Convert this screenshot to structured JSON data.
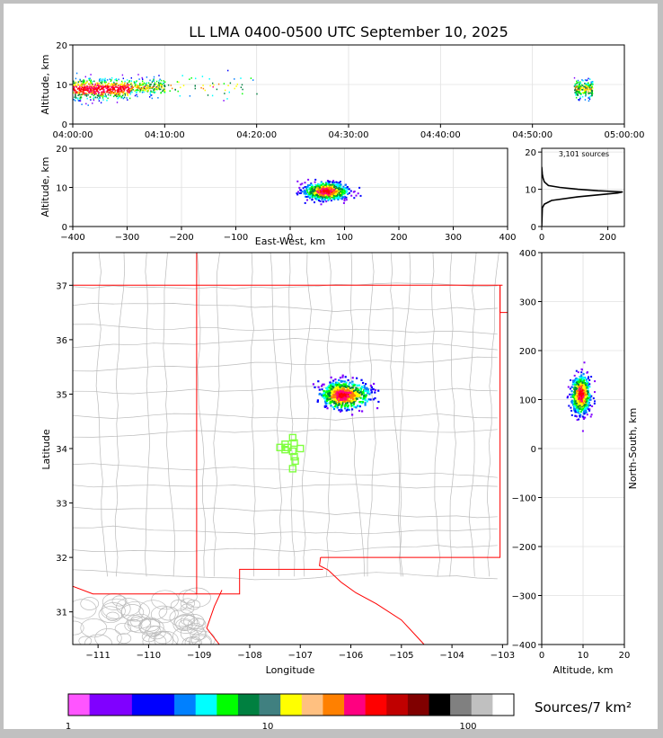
{
  "chart_data": {
    "type": "lightning-mapping-array-composite",
    "title": "LL LMA 0400-0500 UTC September 10, 2025",
    "panels": {
      "time_altitude": {
        "type": "scatter",
        "ylabel": "Altitude, km",
        "ylim": [
          0,
          20
        ],
        "yticks": [
          "0",
          "10",
          "20"
        ],
        "xticks": [
          "04:00:00",
          "04:10:00",
          "04:20:00",
          "04:30:00",
          "04:40:00",
          "04:50:00",
          "05:00:00"
        ],
        "clusters": [
          {
            "t_min_start": 0.0,
            "t_min_end": 6.2,
            "alt_center": 9.0,
            "alt_spread": 2.2,
            "density": "high"
          },
          {
            "t_min_start": 6.2,
            "t_min_end": 10.0,
            "alt_center": 9.5,
            "alt_spread": 1.8,
            "density": "medium"
          },
          {
            "t_min_start": 10.0,
            "t_min_end": 20.0,
            "alt_center": 9.5,
            "alt_spread": 2.5,
            "density": "sparse"
          },
          {
            "t_min_start": 54.5,
            "t_min_end": 56.5,
            "alt_center": 9.0,
            "alt_spread": 2.0,
            "density": "medium"
          }
        ]
      },
      "eastwest_altitude": {
        "type": "heatmap",
        "xlabel": "East-West, km",
        "ylabel": "Altitude, km",
        "xlim": [
          -400,
          400
        ],
        "ylim": [
          0,
          20
        ],
        "xticks": [
          "−400",
          "−300",
          "−200",
          "−100",
          "0",
          "100",
          "200",
          "300",
          "400"
        ],
        "yticks": [
          "0",
          "10",
          "20"
        ],
        "x_center": 65,
        "x_spread": 35,
        "alt_center": 9.2,
        "alt_spread": 1.8
      },
      "altitude_histogram": {
        "type": "line",
        "annotation": "3,101 sources",
        "xlim": [
          0,
          250
        ],
        "ylim": [
          0,
          21
        ],
        "xticks": [
          "0",
          "200"
        ],
        "yticks": [
          "0",
          "10",
          "20"
        ],
        "profile": [
          [
            0,
            0
          ],
          [
            5,
            2
          ],
          [
            6,
            8
          ],
          [
            7,
            30
          ],
          [
            8,
            110
          ],
          [
            8.5,
            170
          ],
          [
            9,
            230
          ],
          [
            9.3,
            245
          ],
          [
            9.6,
            170
          ],
          [
            10,
            110
          ],
          [
            10.5,
            55
          ],
          [
            11,
            20
          ],
          [
            12,
            8
          ],
          [
            13,
            4
          ],
          [
            14,
            2
          ],
          [
            16,
            0
          ]
        ]
      },
      "plan_view_map": {
        "type": "heatmap",
        "xlabel": "Longitude",
        "ylabel": "Latitude",
        "xlim": [
          -111.5,
          -102.9
        ],
        "ylim": [
          30.4,
          37.6
        ],
        "xticks": [
          "−111",
          "−110",
          "−109",
          "−108",
          "−107",
          "−106",
          "−105",
          "−104",
          "−103"
        ],
        "yticks": [
          "31",
          "32",
          "33",
          "34",
          "35",
          "36",
          "37"
        ],
        "source_cluster": {
          "lon_center": -106.2,
          "lat_center": 35.0,
          "lon_spread": 0.35,
          "lat_spread": 0.22
        },
        "stations": [
          [
            -107.15,
            34.2
          ],
          [
            -107.3,
            34.08
          ],
          [
            -107.4,
            34.02
          ],
          [
            -107.25,
            34.02
          ],
          [
            -107.15,
            33.95
          ],
          [
            -107.12,
            34.1
          ],
          [
            -107.0,
            34.0
          ],
          [
            -107.3,
            33.98
          ],
          [
            -107.12,
            33.85
          ],
          [
            -107.1,
            33.77
          ],
          [
            -107.15,
            33.63
          ]
        ]
      },
      "altitude_northsouth": {
        "type": "heatmap",
        "xlabel": "Altitude, km",
        "ylabel": "North-South, km",
        "xlim": [
          0,
          20
        ],
        "ylim": [
          -400,
          400
        ],
        "xticks": [
          "0",
          "10",
          "20"
        ],
        "yticks": [
          "−400",
          "−300",
          "−200",
          "−100",
          "0",
          "100",
          "200",
          "300",
          "400"
        ],
        "alt_center": 9.3,
        "alt_spread": 1.8,
        "ns_center": 112,
        "ns_spread": 25
      }
    },
    "colorbar": {
      "label": "Sources/7 km²",
      "tick_labels": [
        "1",
        "10",
        "100"
      ],
      "colors": [
        "#ff55ff",
        "#8000ff",
        "#8000ff",
        "#0000ff",
        "#0000ff",
        "#0080ff",
        "#00ffff",
        "#00ff00",
        "#008040",
        "#408080",
        "#ffff00",
        "#ffc080",
        "#ff8000",
        "#ff0080",
        "#ff0000",
        "#c00000",
        "#800000",
        "#000000",
        "#808080",
        "#c0c0c0",
        "#ffffff"
      ]
    },
    "colors": {
      "state_border": "#ff0000",
      "county_border": "#bbbbbb",
      "station_marker": "#80ff40",
      "gridline": "#e0e0e0"
    }
  }
}
